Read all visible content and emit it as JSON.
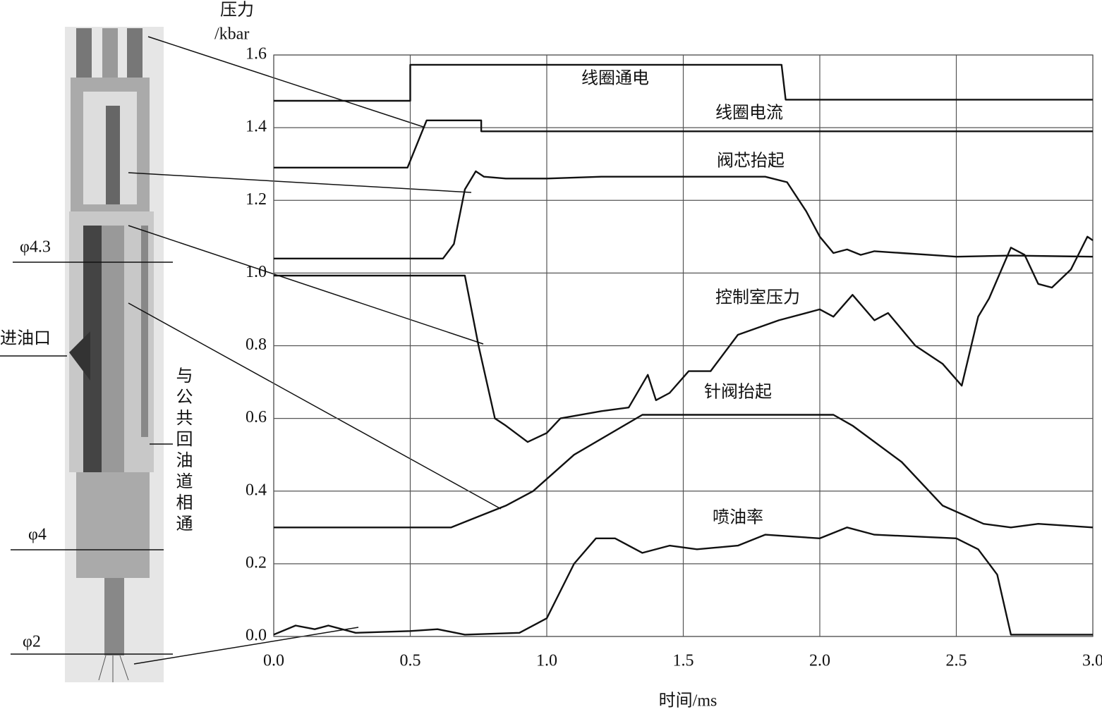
{
  "chart_data": {
    "type": "line",
    "y_label_top": "压力",
    "y_label_unit": "/kbar",
    "x_label": "时间/ms",
    "xlim": [
      0,
      3.0
    ],
    "ylim": [
      0,
      1.6
    ],
    "xticks": [
      {
        "value": 0,
        "label": "0.0"
      },
      0.5,
      {
        "value": 1,
        "label": "1.0"
      },
      1.5,
      {
        "value": 2,
        "label": "2.0"
      },
      2.5,
      {
        "value": 3,
        "label": "3.0"
      }
    ],
    "yticks": [
      {
        "value": 0,
        "label": "0.0"
      },
      0.2,
      0.4,
      0.6,
      0.8,
      {
        "value": 1,
        "label": "1.0"
      },
      1.2,
      1.4,
      1.6
    ],
    "grid": true,
    "color": "#111111",
    "series": [
      {
        "name": "线圈通电",
        "x": [
          0,
          0.5,
          0.5,
          1.86,
          1.875,
          3.0
        ],
        "values": [
          1.474,
          1.474,
          1.573,
          1.573,
          1.477,
          1.477
        ]
      },
      {
        "name": "线圈电流",
        "x": [
          0,
          0.49,
          0.56,
          0.76,
          0.76,
          3.0
        ],
        "values": [
          1.29,
          1.29,
          1.42,
          1.42,
          1.39,
          1.39
        ]
      },
      {
        "name": "阀芯抬起",
        "x": [
          0,
          0.62,
          0.66,
          0.7,
          0.74,
          0.77,
          0.85,
          1.0,
          1.2,
          1.5,
          1.8,
          1.88,
          1.95,
          2.0,
          2.05,
          2.1,
          2.15,
          2.2,
          2.3,
          2.4,
          2.5,
          2.7,
          3.0
        ],
        "values": [
          1.04,
          1.04,
          1.08,
          1.23,
          1.28,
          1.265,
          1.26,
          1.26,
          1.265,
          1.265,
          1.265,
          1.25,
          1.17,
          1.1,
          1.055,
          1.065,
          1.05,
          1.06,
          1.055,
          1.05,
          1.045,
          1.048,
          1.045
        ]
      },
      {
        "name": "控制室压力",
        "x": [
          0,
          0.7,
          0.75,
          0.81,
          0.85,
          0.93,
          1.0,
          1.05,
          1.2,
          1.3,
          1.37,
          1.4,
          1.45,
          1.52,
          1.6,
          1.7,
          1.85,
          2.0,
          2.05,
          2.12,
          2.2,
          2.25,
          2.35,
          2.45,
          2.52,
          2.58,
          2.62,
          2.7,
          2.75,
          2.8,
          2.85,
          2.92,
          2.98,
          3.0
        ],
        "values": [
          0.993,
          0.993,
          0.8,
          0.6,
          0.58,
          0.535,
          0.56,
          0.6,
          0.62,
          0.63,
          0.72,
          0.65,
          0.67,
          0.73,
          0.73,
          0.83,
          0.87,
          0.9,
          0.88,
          0.94,
          0.87,
          0.89,
          0.8,
          0.75,
          0.69,
          0.88,
          0.93,
          1.07,
          1.05,
          0.97,
          0.96,
          1.01,
          1.1,
          1.09
        ]
      },
      {
        "name": "针阀抬起",
        "x": [
          0,
          0.65,
          0.75,
          0.85,
          0.95,
          1.1,
          1.35,
          2.05,
          2.12,
          2.3,
          2.45,
          2.6,
          2.7,
          2.8,
          3.0
        ],
        "values": [
          0.3,
          0.3,
          0.33,
          0.36,
          0.4,
          0.5,
          0.61,
          0.61,
          0.58,
          0.48,
          0.36,
          0.31,
          0.3,
          0.31,
          0.3
        ]
      },
      {
        "name": "喷油率",
        "x": [
          0,
          0.08,
          0.15,
          0.2,
          0.3,
          0.5,
          0.6,
          0.7,
          0.9,
          1.0,
          1.1,
          1.18,
          1.25,
          1.35,
          1.45,
          1.55,
          1.7,
          1.8,
          2.0,
          2.1,
          2.2,
          2.5,
          2.58,
          2.65,
          2.7,
          3.0
        ],
        "values": [
          0.005,
          0.03,
          0.02,
          0.03,
          0.01,
          0.015,
          0.02,
          0.005,
          0.01,
          0.05,
          0.2,
          0.27,
          0.27,
          0.23,
          0.25,
          0.24,
          0.25,
          0.28,
          0.27,
          0.3,
          0.28,
          0.27,
          0.24,
          0.17,
          0.005,
          0.005
        ]
      }
    ]
  },
  "diagram": {
    "labels": [
      "φ4.3",
      "进油口",
      "与公共回油道相通",
      "φ4",
      "φ2"
    ]
  }
}
